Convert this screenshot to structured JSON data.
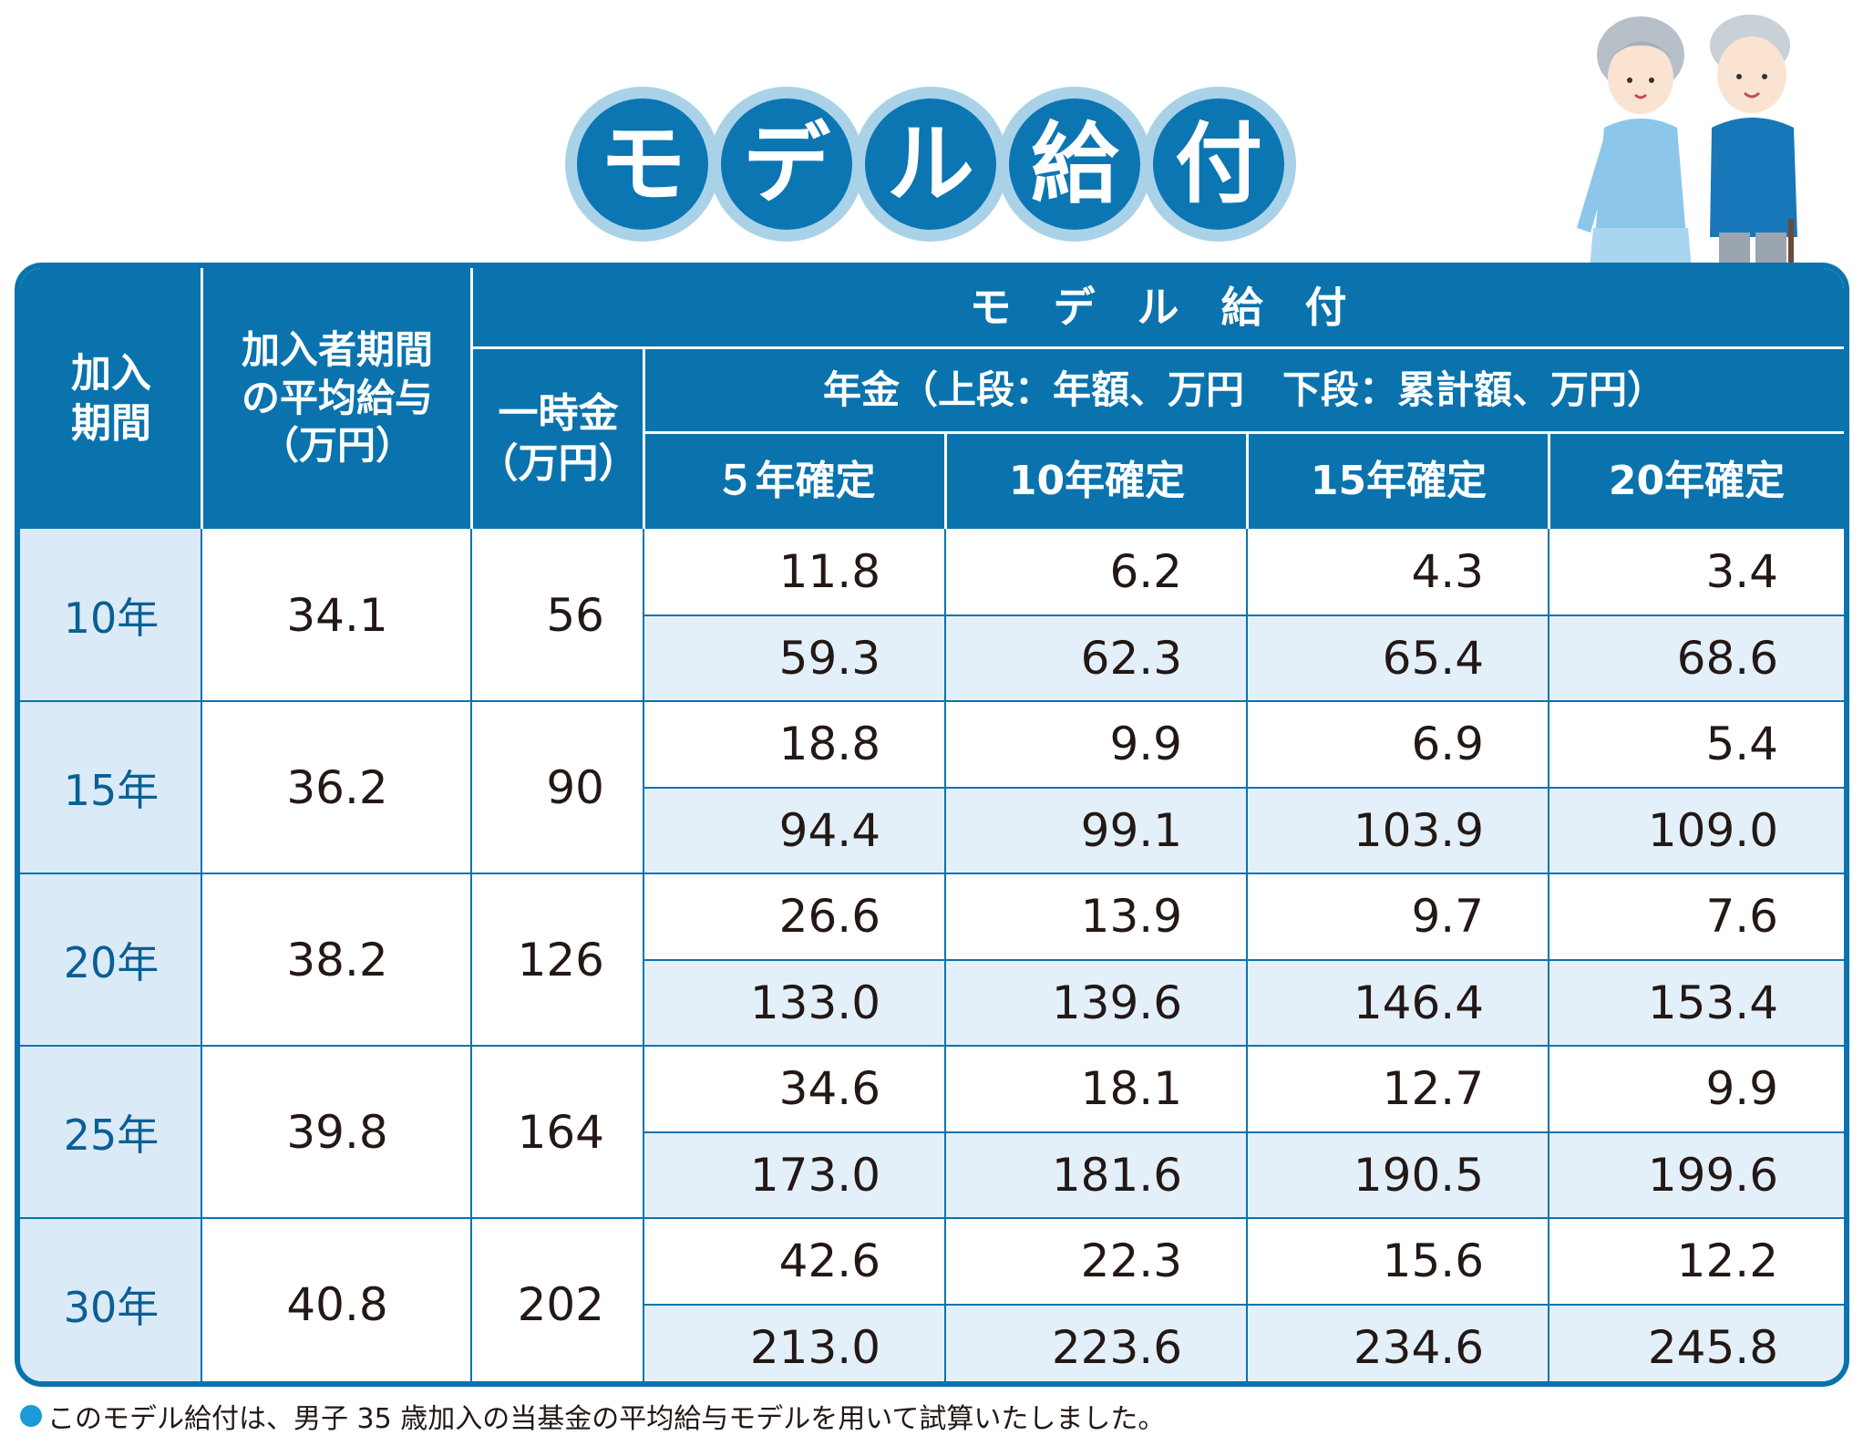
{
  "title": {
    "chars": [
      "モ",
      "デ",
      "ル",
      "給",
      "付"
    ]
  },
  "header": {
    "col_period": "加入\n期間",
    "col_salary": "加入者期間\nの平均給与\n（万円）",
    "col_model": "モ　デ　ル　給　付",
    "col_lump": "一時金\n（万円）",
    "col_pension": "年金（上段：年額、万円　下段：累計額、万円）",
    "col_5": "５年確定",
    "col_10": "10年確定",
    "col_15": "15年確定",
    "col_20": "20年確定"
  },
  "rows": [
    {
      "period": "10年",
      "salary": "34.1",
      "lump": "56",
      "annual": [
        "11.8",
        "6.2",
        "4.3",
        "3.4"
      ],
      "cumulative": [
        "59.3",
        "62.3",
        "65.4",
        "68.6"
      ]
    },
    {
      "period": "15年",
      "salary": "36.2",
      "lump": "90",
      "annual": [
        "18.8",
        "9.9",
        "6.9",
        "5.4"
      ],
      "cumulative": [
        "94.4",
        "99.1",
        "103.9",
        "109.0"
      ]
    },
    {
      "period": "20年",
      "salary": "38.2",
      "lump": "126",
      "annual": [
        "26.6",
        "13.9",
        "9.7",
        "7.6"
      ],
      "cumulative": [
        "133.0",
        "139.6",
        "146.4",
        "153.4"
      ]
    },
    {
      "period": "25年",
      "salary": "39.8",
      "lump": "164",
      "annual": [
        "34.6",
        "18.1",
        "12.7",
        "9.9"
      ],
      "cumulative": [
        "173.0",
        "181.6",
        "190.5",
        "199.6"
      ]
    },
    {
      "period": "30年",
      "salary": "40.8",
      "lump": "202",
      "annual": [
        "42.6",
        "22.3",
        "15.6",
        "12.2"
      ],
      "cumulative": [
        "213.0",
        "223.6",
        "234.6",
        "245.8"
      ]
    }
  ],
  "footnote": "このモデル給付は、男子 35 歳加入の当基金の平均給与モデルを用いて試算いたしました。",
  "colors": {
    "brand_blue": "#0a73ae",
    "badge_ring": "#a9d2e8",
    "row_label_bg": "#daeaf6",
    "shade_bg": "#e3f0fa",
    "bullet": "#1a9ad6"
  },
  "icons": {
    "illustration": "elderly-couple-illustration",
    "bullet": "bullet-dot-icon"
  }
}
